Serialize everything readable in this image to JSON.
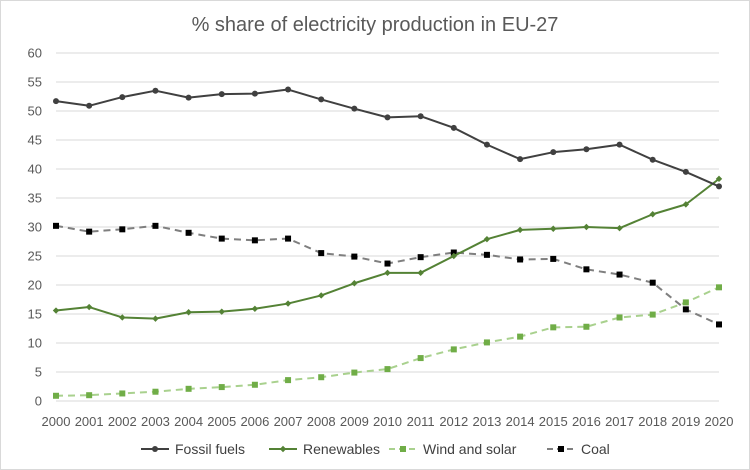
{
  "chart_data": {
    "type": "line",
    "title": "% share of electricity production in EU-27",
    "xlabel": "",
    "ylabel": "",
    "categories": [
      "2000",
      "2001",
      "2002",
      "2003",
      "2004",
      "2005",
      "2006",
      "2007",
      "2008",
      "2009",
      "2010",
      "2011",
      "2012",
      "2013",
      "2014",
      "2015",
      "2016",
      "2017",
      "2018",
      "2019",
      "2020"
    ],
    "ylim": [
      0,
      60
    ],
    "yticks": [
      0,
      5,
      10,
      15,
      20,
      25,
      30,
      35,
      40,
      45,
      50,
      55,
      60
    ],
    "grid": "horizontal",
    "legend_position": "bottom",
    "series": [
      {
        "name": "Fossil fuels",
        "color": "#404040",
        "dash": "solid",
        "marker": "circle",
        "values": [
          51.7,
          50.9,
          52.4,
          53.5,
          52.3,
          52.9,
          53.0,
          53.7,
          52.0,
          50.4,
          48.9,
          49.1,
          47.1,
          44.2,
          41.7,
          42.9,
          43.4,
          44.2,
          41.6,
          39.5,
          37.0
        ]
      },
      {
        "name": "Renewables",
        "color": "#548235",
        "dash": "solid",
        "marker": "diamond",
        "values": [
          15.6,
          16.2,
          14.4,
          14.2,
          15.3,
          15.4,
          15.9,
          16.8,
          18.2,
          20.3,
          22.1,
          22.1,
          25.0,
          27.9,
          29.5,
          29.7,
          30.0,
          29.8,
          32.2,
          33.9,
          38.3
        ]
      },
      {
        "name": "Wind and solar",
        "color": "#a9d18e",
        "dash": "dashed",
        "marker": "square",
        "markerColor": "#70ad47",
        "values": [
          0.9,
          1.0,
          1.3,
          1.6,
          2.1,
          2.4,
          2.8,
          3.6,
          4.1,
          4.9,
          5.5,
          7.4,
          8.9,
          10.1,
          11.1,
          12.7,
          12.8,
          14.4,
          14.9,
          17.0,
          19.6
        ]
      },
      {
        "name": "Coal",
        "color": "#7f7f7f",
        "dash": "dashed",
        "marker": "square",
        "markerColor": "#000000",
        "values": [
          30.2,
          29.2,
          29.6,
          30.2,
          29.0,
          28.0,
          27.7,
          28.0,
          25.5,
          24.9,
          23.7,
          24.8,
          25.6,
          25.2,
          24.4,
          24.5,
          22.7,
          21.8,
          20.4,
          15.8,
          13.2
        ]
      }
    ]
  }
}
